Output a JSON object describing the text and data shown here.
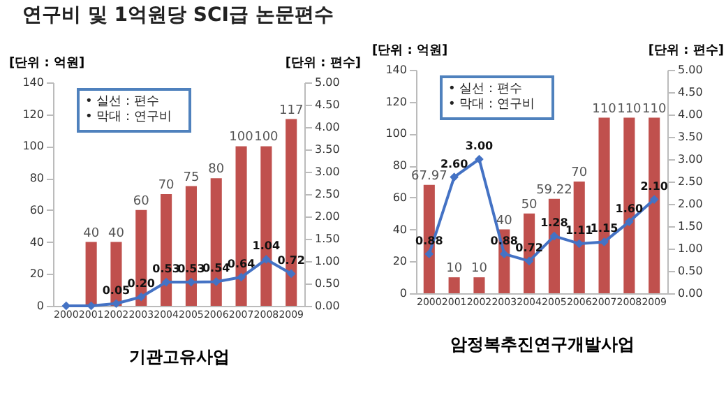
{
  "chart_data": [
    {
      "type": "bar",
      "title": "연구비 및 1억원당 SCI급 논문편수",
      "xlabel": "기관고유사업",
      "ylabel": "[단위 : 억원]",
      "y2label": "[단위 : 편수]",
      "annotations": [
        "• 실선 : 편수",
        "• 막대 : 연구비"
      ],
      "categories": [
        "2000",
        "2001",
        "2002",
        "2003",
        "2004",
        "2005",
        "2006",
        "2007",
        "2008",
        "2009"
      ],
      "series": [
        {
          "type": "bar",
          "color": "#c0504d",
          "values": [
            null,
            40,
            40,
            60,
            70,
            75,
            80,
            100,
            100,
            117
          ],
          "value_labels": [
            null,
            "40",
            "40",
            "60",
            "70",
            "75",
            "80",
            "100",
            "100",
            "117"
          ]
        },
        {
          "type": "line",
          "axis": "y2",
          "color": "#4472c4",
          "values": [
            0,
            0,
            0.05,
            0.2,
            0.53,
            0.53,
            0.54,
            0.64,
            1.04,
            0.72
          ],
          "value_labels": [
            null,
            null,
            "0.05",
            "0.20",
            "0.53",
            "0.53",
            "0.54",
            "0.64",
            "1.04",
            "0.72"
          ]
        }
      ],
      "ylim": [
        0,
        140
      ],
      "yticks": [
        0,
        20,
        40,
        60,
        80,
        100,
        120,
        140
      ],
      "y2lim": [
        0,
        5
      ],
      "y2ticks": [
        {
          "value": 0,
          "label": "0.00"
        },
        {
          "value": 0.5,
          "label": "0.50"
        },
        {
          "value": 1,
          "label": "1.00"
        },
        {
          "value": 1.5,
          "label": "1.50"
        },
        {
          "value": 2,
          "label": "2.00"
        },
        {
          "value": 2.5,
          "label": "2.50"
        },
        {
          "value": 3,
          "label": "3.00"
        },
        {
          "value": 3.5,
          "label": "3.50"
        },
        {
          "value": 4,
          "label": "4.00"
        },
        {
          "value": 4.5,
          "label": "4.50"
        },
        {
          "value": 5,
          "label": "5.00"
        }
      ],
      "marker": "diamond"
    },
    {
      "type": "bar",
      "xlabel": "암정복추진연구개발사업",
      "ylabel": "[단위 : 억원]",
      "y2label": "[단위 : 편수]",
      "annotations": [
        "• 실선 : 편수",
        "• 막대 : 연구비"
      ],
      "categories": [
        "2000",
        "2001",
        "2002",
        "2003",
        "2004",
        "2005",
        "2006",
        "2007",
        "2008",
        "2009"
      ],
      "series": [
        {
          "type": "bar",
          "color": "#c0504d",
          "values": [
            67.97,
            10,
            10,
            40,
            50,
            59.22,
            70,
            110,
            110,
            110
          ],
          "value_labels": [
            "67.97",
            "10",
            "10",
            "40",
            "50",
            "59.22",
            "70",
            "110",
            "110",
            "110"
          ]
        },
        {
          "type": "line",
          "axis": "y2",
          "color": "#4472c4",
          "values": [
            0.88,
            2.6,
            3.0,
            0.88,
            0.72,
            1.28,
            1.11,
            1.15,
            1.6,
            2.1
          ],
          "value_labels": [
            "0.88",
            "2.60",
            "3.00",
            "0.88",
            "0.72",
            "1.28",
            "1.11",
            "1.15",
            "1.60",
            "2.10"
          ]
        }
      ],
      "ylim": [
        0,
        140
      ],
      "yticks": [
        0,
        20,
        40,
        60,
        80,
        100,
        120,
        140
      ],
      "y2lim": [
        0,
        5
      ],
      "y2ticks": [
        {
          "value": 0,
          "label": "0.00"
        },
        {
          "value": 0.5,
          "label": "0.50"
        },
        {
          "value": 1,
          "label": "1.00"
        },
        {
          "value": 1.5,
          "label": "1.50"
        },
        {
          "value": 2,
          "label": "2.00"
        },
        {
          "value": 2.5,
          "label": "2.50"
        },
        {
          "value": 3,
          "label": "3.00"
        },
        {
          "value": 3.5,
          "label": "3.50"
        },
        {
          "value": 4,
          "label": "4.00"
        },
        {
          "value": 4.5,
          "label": "4.50"
        },
        {
          "value": 5,
          "label": "5.00"
        }
      ],
      "marker": "diamond"
    }
  ]
}
